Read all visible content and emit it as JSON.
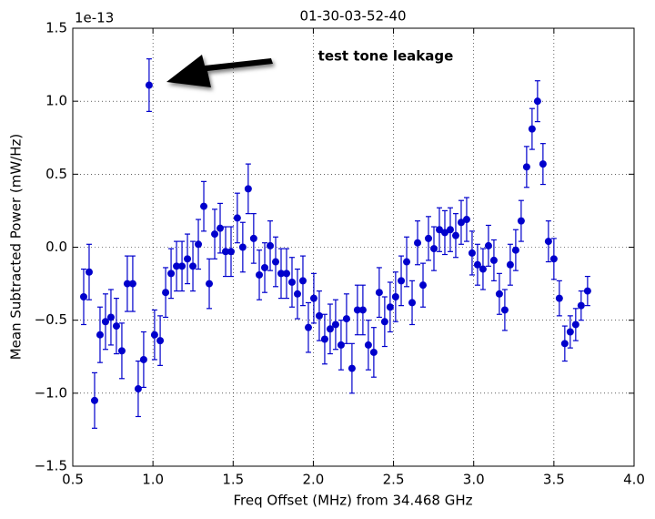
{
  "chart_data": {
    "type": "errorbar",
    "title": "01-30-03-52-40",
    "x_label": "Freq Offset (MHz) from 34.468 GHz",
    "y_label": "Mean Subtracted Power (mW/Hz)",
    "y_offset_label": "1e-13",
    "annotation": "test tone leakage",
    "color": "#0000cc",
    "grid": true,
    "xlim": [
      0.5,
      4.0
    ],
    "ylim": [
      -1.5,
      1.5
    ],
    "xticks": [
      0.5,
      {
        "value": 1,
        "label": "1.0"
      },
      1.5,
      {
        "value": 2,
        "label": "2.0"
      },
      2.5,
      {
        "value": 3,
        "label": "3.0"
      },
      3.5,
      {
        "value": 4,
        "label": "4.0"
      }
    ],
    "yticks": [
      {
        "value": -1.5,
        "label": "−1.5"
      },
      {
        "value": -1,
        "label": "−1.0"
      },
      {
        "value": -0.5,
        "label": "−0.5"
      },
      {
        "value": 0,
        "label": "0.0"
      },
      0.5,
      {
        "value": 1,
        "label": "1.0"
      },
      1.5
    ],
    "x": [
      0.568,
      0.602,
      0.636,
      0.67,
      0.704,
      0.738,
      0.772,
      0.806,
      0.84,
      0.874,
      0.908,
      0.942,
      0.976,
      1.01,
      1.045,
      1.079,
      1.113,
      1.147,
      1.181,
      1.215,
      1.249,
      1.283,
      1.317,
      1.351,
      1.385,
      1.419,
      1.453,
      1.487,
      1.526,
      1.56,
      1.594,
      1.628,
      1.663,
      1.697,
      1.731,
      1.765,
      1.799,
      1.833,
      1.867,
      1.901,
      1.935,
      1.969,
      2.003,
      2.037,
      2.071,
      2.105,
      2.139,
      2.173,
      2.207,
      2.241,
      2.275,
      2.309,
      2.343,
      2.377,
      2.411,
      2.445,
      2.479,
      2.513,
      2.548,
      2.582,
      2.616,
      2.65,
      2.684,
      2.718,
      2.752,
      2.786,
      2.82,
      2.854,
      2.888,
      2.922,
      2.956,
      2.99,
      3.024,
      3.058,
      3.092,
      3.126,
      3.16,
      3.194,
      3.228,
      3.262,
      3.296,
      3.33,
      3.364,
      3.398,
      3.432,
      3.466,
      3.5,
      3.534,
      3.568,
      3.602,
      3.636,
      3.67,
      3.71
    ],
    "values": [
      -0.34,
      -0.17,
      -1.05,
      -0.6,
      -0.51,
      -0.48,
      -0.54,
      -0.71,
      -0.25,
      -0.25,
      -0.97,
      -0.77,
      1.11,
      -0.6,
      -0.64,
      -0.31,
      -0.18,
      -0.13,
      -0.13,
      -0.08,
      -0.13,
      0.02,
      0.28,
      -0.25,
      0.09,
      0.13,
      -0.03,
      -0.03,
      0.2,
      0.0,
      0.4,
      0.06,
      -0.19,
      -0.14,
      0.01,
      -0.1,
      -0.18,
      -0.18,
      -0.24,
      -0.32,
      -0.23,
      -0.55,
      -0.35,
      -0.47,
      -0.63,
      -0.56,
      -0.53,
      -0.67,
      -0.49,
      -0.83,
      -0.43,
      -0.43,
      -0.67,
      -0.72,
      -0.31,
      -0.51,
      -0.41,
      -0.34,
      -0.23,
      -0.1,
      -0.38,
      0.03,
      -0.26,
      0.06,
      -0.01,
      0.12,
      0.1,
      0.12,
      0.08,
      0.17,
      0.19,
      -0.04,
      -0.12,
      -0.15,
      0.01,
      -0.09,
      -0.32,
      -0.43,
      -0.12,
      -0.02,
      0.18,
      0.55,
      0.81,
      1.0,
      0.57,
      0.04,
      -0.08,
      -0.35,
      -0.66,
      -0.58,
      -0.53,
      -0.4,
      -0.3
    ],
    "errors": [
      0.19,
      0.19,
      0.19,
      0.19,
      0.19,
      0.19,
      0.19,
      0.19,
      0.19,
      0.19,
      0.19,
      0.19,
      0.18,
      0.17,
      0.17,
      0.17,
      0.17,
      0.17,
      0.17,
      0.17,
      0.17,
      0.17,
      0.17,
      0.17,
      0.17,
      0.17,
      0.17,
      0.17,
      0.17,
      0.17,
      0.17,
      0.17,
      0.17,
      0.17,
      0.17,
      0.17,
      0.17,
      0.17,
      0.17,
      0.17,
      0.17,
      0.17,
      0.17,
      0.17,
      0.17,
      0.17,
      0.17,
      0.17,
      0.17,
      0.17,
      0.17,
      0.17,
      0.17,
      0.17,
      0.17,
      0.17,
      0.17,
      0.17,
      0.17,
      0.17,
      0.15,
      0.15,
      0.15,
      0.15,
      0.15,
      0.15,
      0.15,
      0.15,
      0.15,
      0.15,
      0.15,
      0.15,
      0.14,
      0.14,
      0.14,
      0.14,
      0.14,
      0.14,
      0.14,
      0.14,
      0.14,
      0.14,
      0.14,
      0.14,
      0.14,
      0.14,
      0.14,
      0.12,
      0.12,
      0.11,
      0.11,
      0.1,
      0.1
    ]
  }
}
